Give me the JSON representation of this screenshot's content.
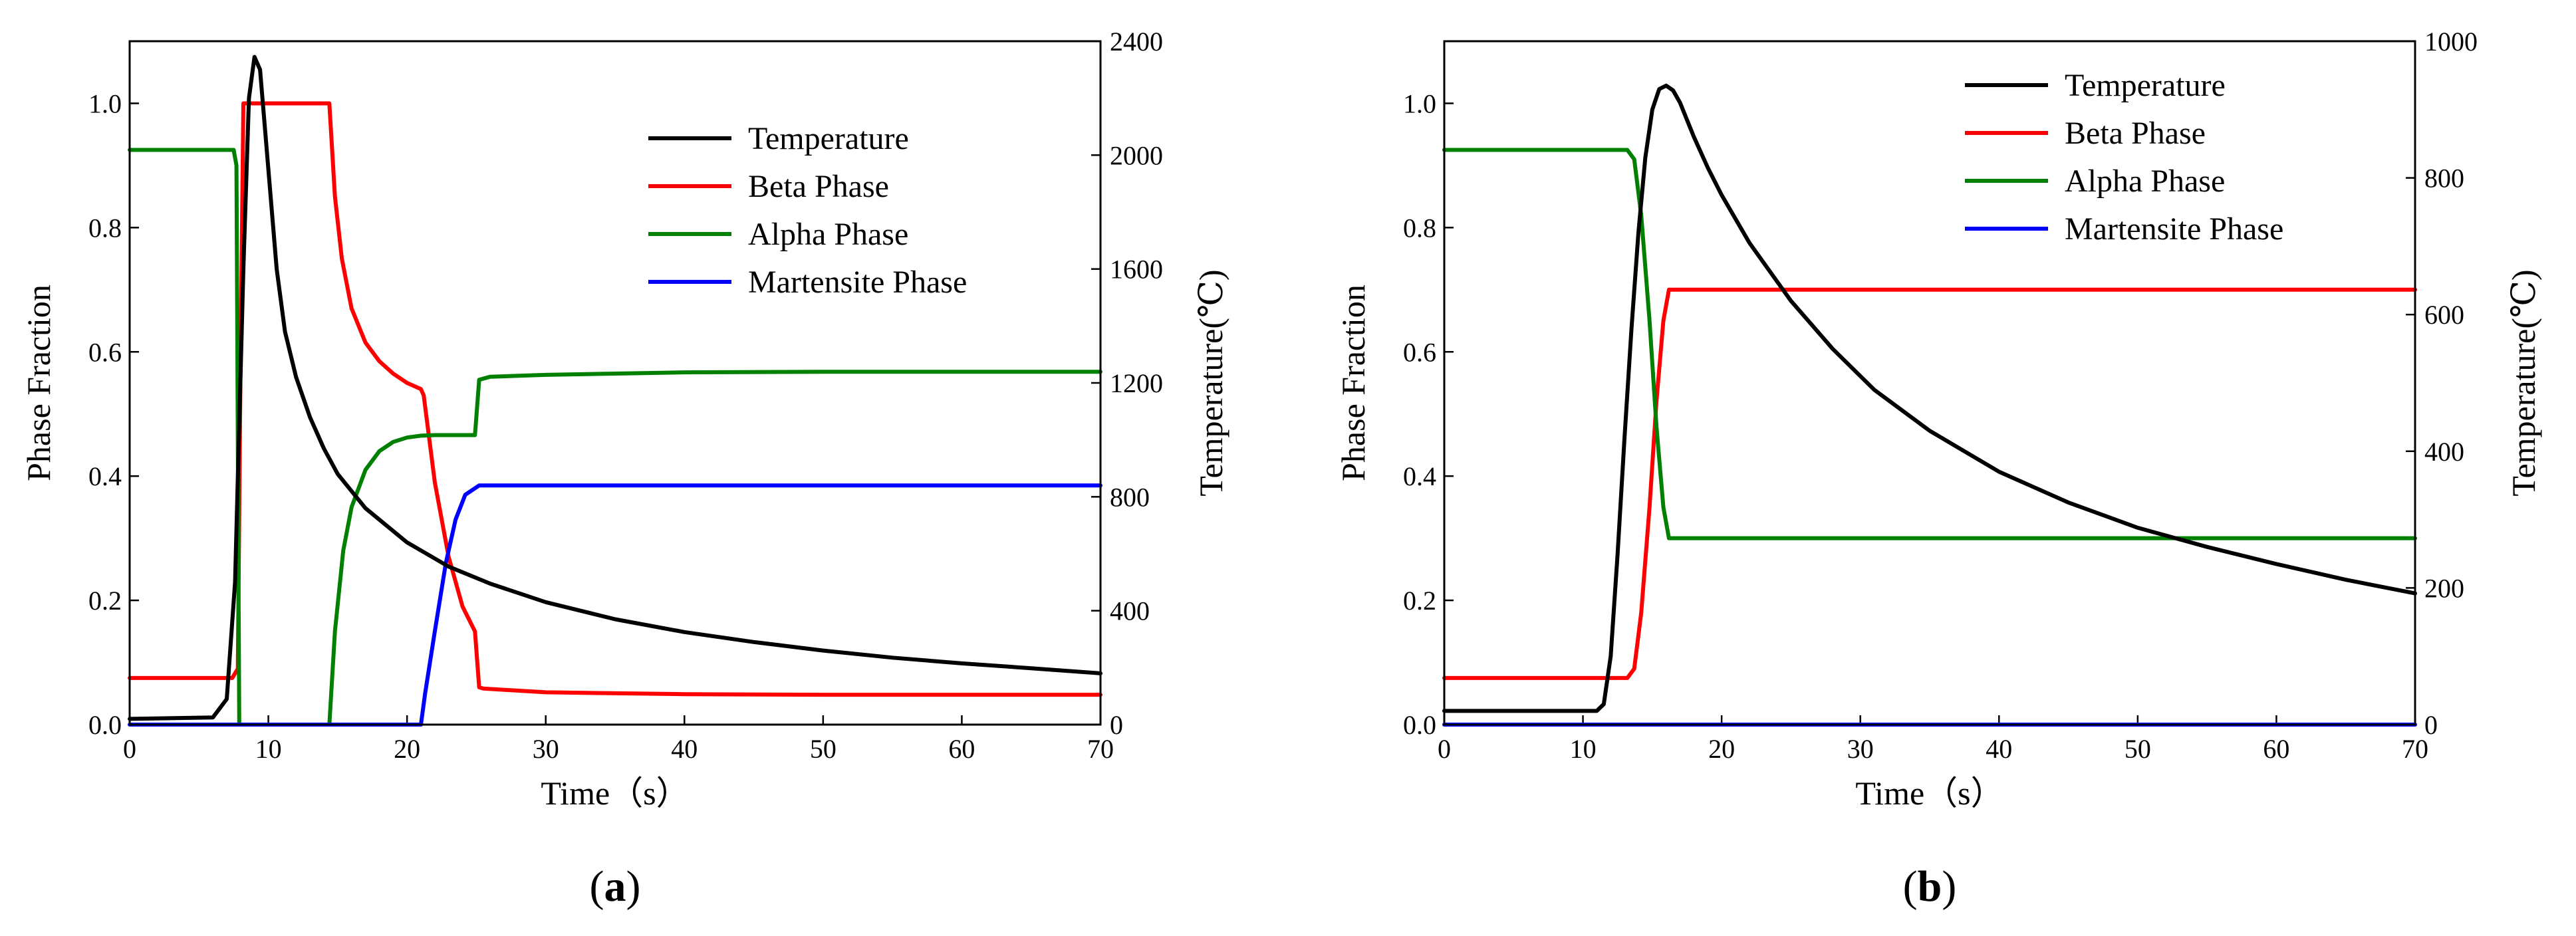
{
  "chart_data": [
    {
      "type": "line",
      "panel_label": "a",
      "xlabel": "Time（s）",
      "ylabel": "Phase Fraction",
      "y2label": "Temperature(℃)",
      "xlim": [
        0,
        70
      ],
      "ylim": [
        0,
        1.1
      ],
      "y2lim": [
        0,
        2400
      ],
      "xticks": [
        0,
        10,
        20,
        30,
        40,
        50,
        60,
        70
      ],
      "yticks": [
        0.0,
        0.2,
        0.4,
        0.6,
        0.8,
        1.0
      ],
      "y2ticks": [
        0,
        400,
        800,
        1200,
        1600,
        2000,
        2400
      ],
      "grid": false,
      "legend_position": "top-right",
      "series": [
        {
          "name": "Temperature",
          "axis": "right",
          "color": "#000000",
          "x": [
            0,
            6,
            7,
            7.6,
            8.2,
            8.6,
            9.0,
            9.4,
            10,
            10.6,
            11.2,
            12,
            13,
            14,
            15,
            17,
            20,
            23,
            26,
            30,
            35,
            40,
            45,
            50,
            55,
            60,
            65,
            70
          ],
          "y": [
            20,
            25,
            90,
            500,
            1600,
            2200,
            2345,
            2300,
            1950,
            1600,
            1380,
            1220,
            1080,
            970,
            880,
            760,
            640,
            555,
            495,
            430,
            370,
            325,
            290,
            260,
            235,
            215,
            198,
            180
          ]
        },
        {
          "name": "Beta Phase",
          "axis": "left",
          "color": "#ff0000",
          "x": [
            0,
            7.4,
            7.8,
            8.0,
            8.2,
            14.4,
            14.8,
            15.3,
            16,
            17,
            18,
            19,
            20,
            21,
            21.2,
            22,
            23,
            24,
            24.9,
            25.2,
            25.5,
            30,
            40,
            50,
            60,
            70
          ],
          "y": [
            0.075,
            0.075,
            0.09,
            0.6,
            1.0,
            1.0,
            0.85,
            0.75,
            0.67,
            0.615,
            0.585,
            0.565,
            0.55,
            0.54,
            0.53,
            0.39,
            0.27,
            0.19,
            0.15,
            0.06,
            0.058,
            0.052,
            0.049,
            0.048,
            0.048,
            0.048
          ]
        },
        {
          "name": "Alpha Phase",
          "axis": "left",
          "color": "#008000",
          "x": [
            0,
            7.5,
            7.7,
            7.9,
            14.4,
            14.8,
            15.4,
            16,
            17,
            18,
            19,
            20,
            21,
            22,
            24.9,
            25.2,
            26,
            30,
            40,
            50,
            60,
            70
          ],
          "y": [
            0.925,
            0.925,
            0.9,
            0.0,
            0.0,
            0.15,
            0.28,
            0.35,
            0.41,
            0.44,
            0.455,
            0.462,
            0.465,
            0.466,
            0.466,
            0.555,
            0.56,
            0.563,
            0.567,
            0.568,
            0.568,
            0.568
          ]
        },
        {
          "name": "Martensite Phase",
          "axis": "left",
          "color": "#0000ff",
          "x": [
            0,
            21,
            21.3,
            22,
            22.8,
            23.5,
            24.2,
            25.2,
            70
          ],
          "y": [
            0.0,
            0.0,
            0.05,
            0.15,
            0.26,
            0.33,
            0.37,
            0.385,
            0.385
          ]
        }
      ]
    },
    {
      "type": "line",
      "panel_label": "b",
      "xlabel": "Time（s）",
      "ylabel": "Phase Fraction",
      "y2label": "Temperature(℃)",
      "xlim": [
        0,
        70
      ],
      "ylim": [
        0,
        1.1
      ],
      "y2lim": [
        0,
        1000
      ],
      "xticks": [
        0,
        10,
        20,
        30,
        40,
        50,
        60,
        70
      ],
      "yticks": [
        0.0,
        0.2,
        0.4,
        0.6,
        0.8,
        1.0
      ],
      "y2ticks": [
        0,
        200,
        400,
        600,
        800,
        1000
      ],
      "grid": false,
      "legend_position": "top-right",
      "series": [
        {
          "name": "Temperature",
          "axis": "right",
          "color": "#000000",
          "x": [
            0,
            11,
            11.5,
            12,
            12.5,
            13,
            13.5,
            14,
            14.5,
            15,
            15.5,
            16,
            16.5,
            17,
            18,
            19,
            20,
            22,
            25,
            28,
            31,
            35,
            40,
            45,
            50,
            55,
            60,
            65,
            70
          ],
          "y": [
            20,
            20,
            30,
            100,
            250,
            420,
            580,
            720,
            830,
            900,
            930,
            935,
            928,
            910,
            860,
            815,
            775,
            705,
            620,
            550,
            490,
            430,
            370,
            325,
            288,
            260,
            235,
            212,
            192
          ]
        },
        {
          "name": "Beta Phase",
          "axis": "left",
          "color": "#ff0000",
          "x": [
            0,
            13.2,
            13.7,
            14.2,
            14.8,
            15.3,
            15.8,
            16.2,
            70
          ],
          "y": [
            0.075,
            0.075,
            0.09,
            0.18,
            0.35,
            0.52,
            0.65,
            0.7,
            0.7
          ]
        },
        {
          "name": "Alpha Phase",
          "axis": "left",
          "color": "#008000",
          "x": [
            0,
            13.2,
            13.7,
            14.2,
            14.8,
            15.3,
            15.8,
            16.2,
            70
          ],
          "y": [
            0.925,
            0.925,
            0.91,
            0.82,
            0.65,
            0.48,
            0.35,
            0.3,
            0.3
          ]
        },
        {
          "name": "Martensite Phase",
          "axis": "left",
          "color": "#0000ff",
          "x": [
            0,
            70
          ],
          "y": [
            0.0,
            0.0
          ]
        }
      ]
    }
  ]
}
